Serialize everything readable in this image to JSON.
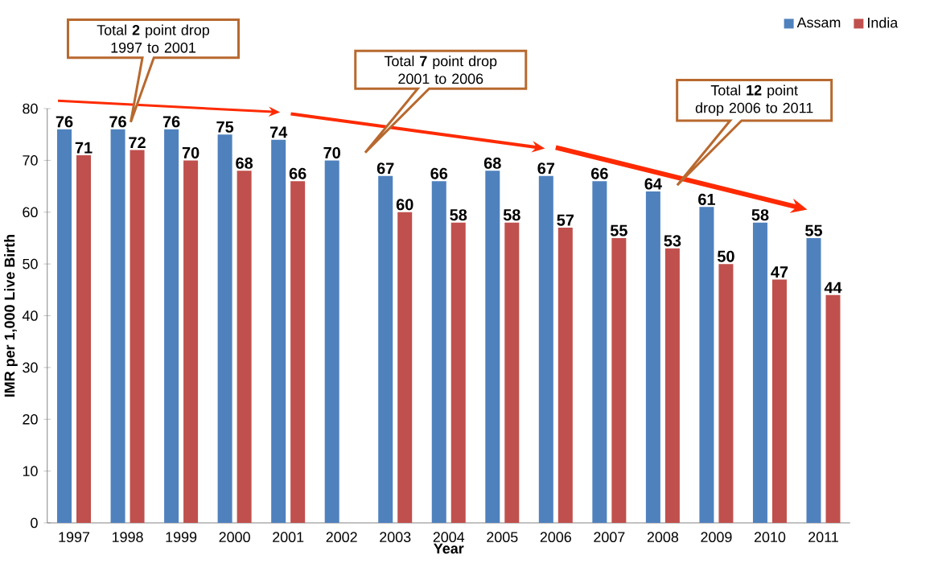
{
  "chart_data": {
    "type": "bar",
    "xlabel": "Year",
    "ylabel": "IMR per 1,000 Live Birth",
    "categories": [
      "1997",
      "1998",
      "1999",
      "2000",
      "2001",
      "2002",
      "2003",
      "2004",
      "2005",
      "2006",
      "2007",
      "2008",
      "2009",
      "2010",
      "2011"
    ],
    "series": [
      {
        "name": "Assam",
        "color": "#4f81bd",
        "values": [
          76,
          76,
          76,
          75,
          74,
          70,
          67,
          66,
          68,
          67,
          66,
          64,
          61,
          58,
          55
        ]
      },
      {
        "name": "India",
        "color": "#c0504d",
        "values": [
          71,
          72,
          70,
          68,
          66,
          null,
          60,
          58,
          58,
          57,
          55,
          53,
          50,
          47,
          44
        ]
      }
    ],
    "ylim": [
      0,
      80
    ],
    "yticks": [
      0,
      10,
      20,
      30,
      40,
      50,
      60,
      70,
      80
    ],
    "data_labels": true,
    "legend": "top right",
    "grid": false,
    "annotations": [
      "Total **2** point drop 1997 to 2001",
      "Total **7** point drop 2001 to 2006",
      "Total **12** point drop 2006 to 2011"
    ]
  }
}
